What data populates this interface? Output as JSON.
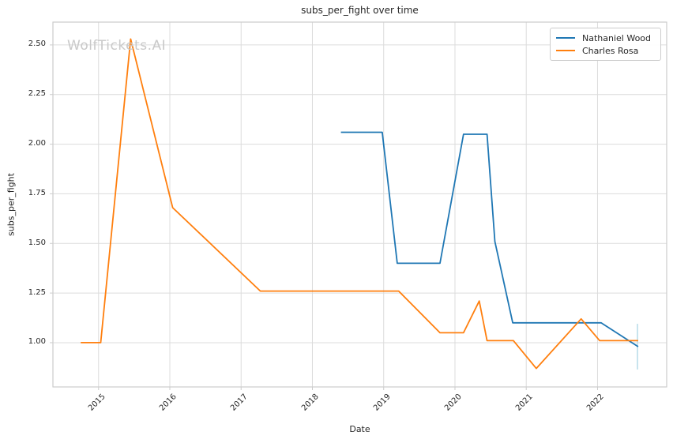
{
  "colors": {
    "background": "#ffffff",
    "grid": "#dcdcdc",
    "spine": "#cccccc",
    "text": "#262626",
    "watermark": "#c9c9c9",
    "cursor_marker": "#b5dbe8"
  },
  "chart_data": {
    "type": "line",
    "title": "subs_per_fight over time",
    "xlabel": "Date",
    "ylabel": "subs_per_fight",
    "watermark": "WolfTickets.AI",
    "grid": true,
    "legend_position": "upper right",
    "xlim": [
      2014.36,
      2022.97
    ],
    "ylim": [
      0.777,
      2.615
    ],
    "xticks": [
      2015,
      2016,
      2017,
      2018,
      2019,
      2020,
      2021,
      2022
    ],
    "yticks": [
      1.0,
      1.25,
      1.5,
      1.75,
      2.0,
      2.25,
      2.5
    ],
    "series": [
      {
        "name": "Nathaniel Wood",
        "color": "#1f77b4",
        "points": [
          [
            2018.4,
            2.06
          ],
          [
            2018.98,
            2.06
          ],
          [
            2019.19,
            1.4
          ],
          [
            2019.79,
            1.4
          ],
          [
            2020.12,
            2.05
          ],
          [
            2020.45,
            2.05
          ],
          [
            2020.56,
            1.51
          ],
          [
            2020.81,
            1.1
          ],
          [
            2022.05,
            1.1
          ],
          [
            2022.57,
            0.98
          ]
        ]
      },
      {
        "name": "Charles Rosa",
        "color": "#ff7f0e",
        "points": [
          [
            2014.75,
            1.0
          ],
          [
            2015.03,
            1.0
          ],
          [
            2015.45,
            2.53
          ],
          [
            2016.04,
            1.68
          ],
          [
            2017.27,
            1.26
          ],
          [
            2019.21,
            1.26
          ],
          [
            2019.79,
            1.05
          ],
          [
            2020.12,
            1.05
          ],
          [
            2020.34,
            1.21
          ],
          [
            2020.45,
            1.01
          ],
          [
            2020.82,
            1.01
          ],
          [
            2021.14,
            0.87
          ],
          [
            2021.77,
            1.12
          ],
          [
            2022.03,
            1.01
          ],
          [
            2022.57,
            1.01
          ]
        ]
      }
    ],
    "cursor_marker": {
      "x": 2022.56,
      "y_range": [
        0.865,
        1.095
      ]
    }
  }
}
